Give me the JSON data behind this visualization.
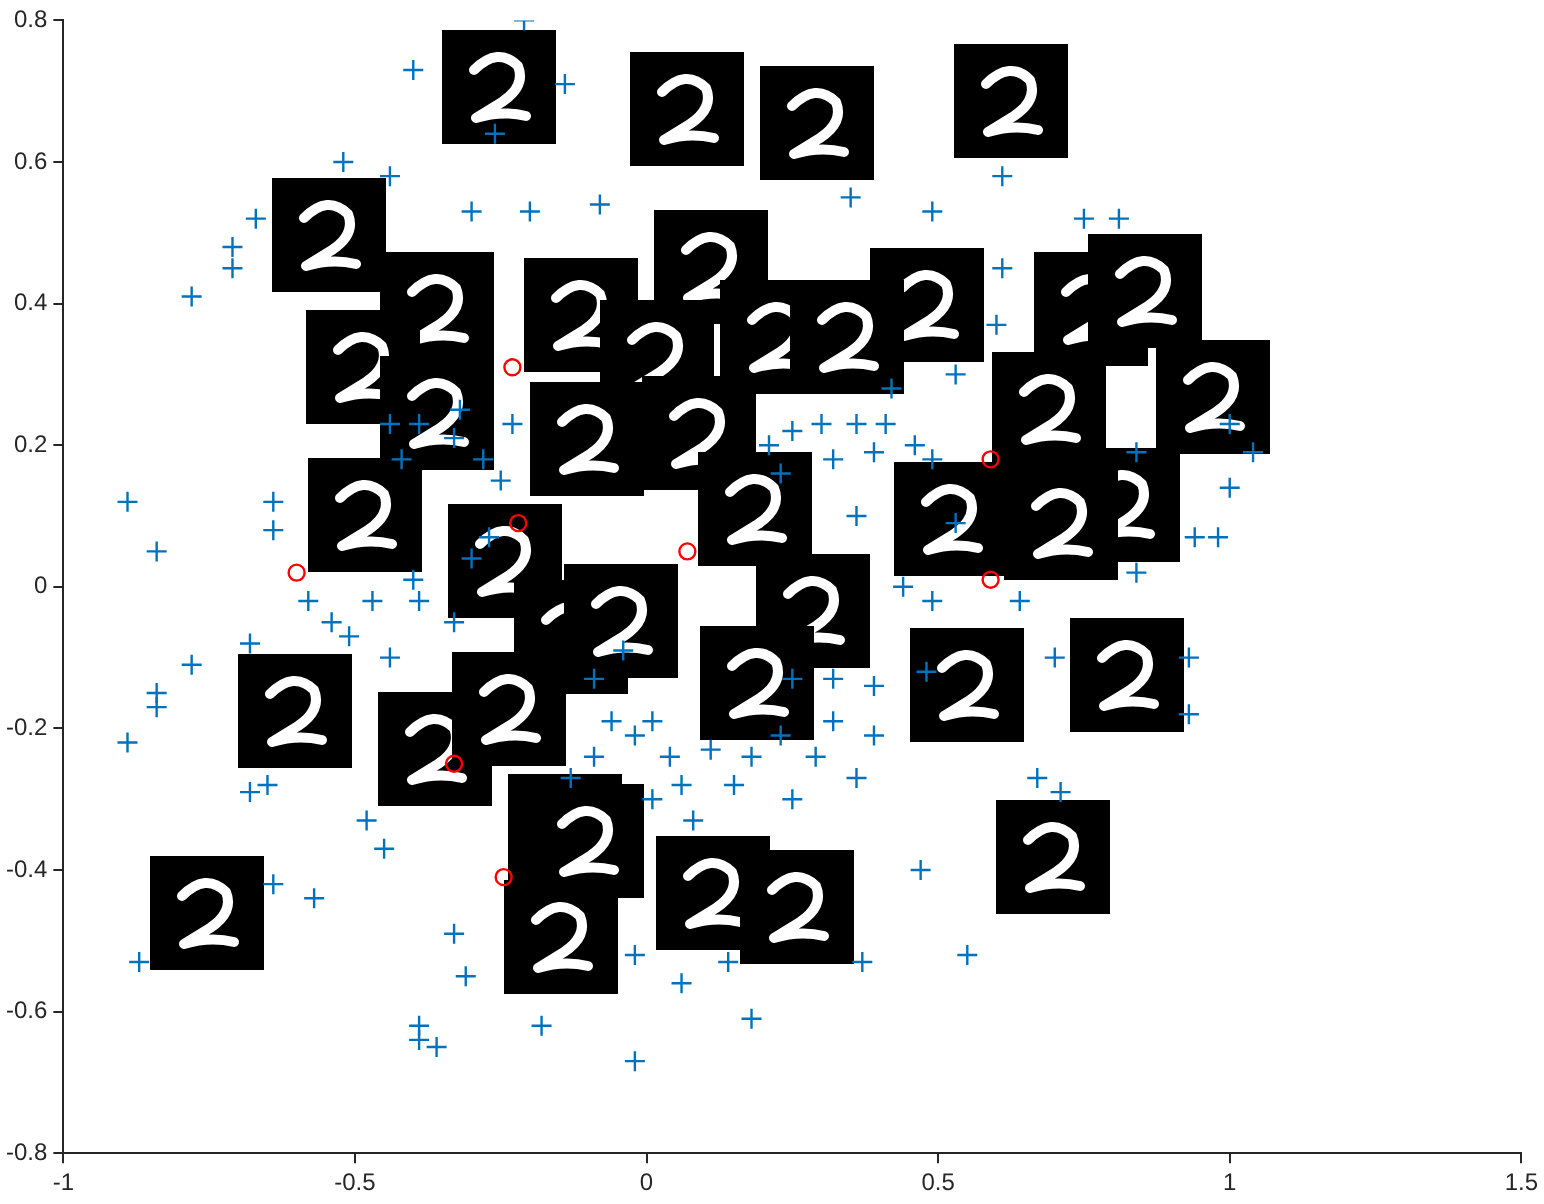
{
  "chart_data": {
    "type": "scatter",
    "xlim": [
      -1,
      1.5
    ],
    "ylim": [
      -0.8,
      0.8
    ],
    "xticks": [
      -1,
      -0.5,
      0,
      0.5,
      1,
      1.5
    ],
    "yticks": [
      -0.8,
      -0.6,
      -0.4,
      -0.2,
      0,
      0.2,
      0.4,
      0.6,
      0.8
    ],
    "grid": false,
    "legend": false,
    "series": [
      {
        "color": "#0072bd",
        "marker": "cross",
        "x": [
          -0.21,
          -0.4,
          -0.14,
          -0.26,
          -0.52,
          -0.44,
          -0.67,
          -0.71,
          -0.78,
          -0.71,
          -0.89,
          -0.84,
          -0.3,
          -0.2,
          -0.08,
          -0.89,
          -0.84,
          -0.84,
          -0.68,
          -0.78,
          -0.68,
          -0.65,
          -0.64,
          -0.57,
          -0.87,
          -0.31,
          -0.39,
          -0.39,
          -0.36,
          -0.18,
          -0.02,
          0.06,
          -0.02,
          -0.33,
          -0.45,
          -0.48,
          0.18,
          0.14,
          0.47,
          0.55,
          0.37,
          0.25,
          0.48,
          0.7,
          0.93,
          0.93,
          0.67,
          0.71,
          0.64,
          0.61,
          0.49,
          0.81,
          0.75,
          0.35,
          0.61,
          0.6,
          0.53,
          0.42,
          0.84,
          1.04,
          1.0,
          0.84,
          0.94,
          0.98,
          1.0,
          0.25,
          0.3,
          0.36,
          0.41,
          0.21,
          0.23,
          0.32,
          0.39,
          0.46,
          0.49,
          0.53,
          0.36,
          0.44,
          0.49,
          -0.44,
          -0.39,
          -0.33,
          -0.42,
          -0.28,
          -0.25,
          -0.27,
          -0.3,
          -0.4,
          -0.39,
          -0.33,
          -0.09,
          -0.06,
          -0.02,
          0.04,
          0.11,
          -0.09,
          -0.13,
          0.01,
          0.06,
          0.15,
          0.18,
          0.23,
          0.29,
          0.32,
          0.39,
          0.36,
          0.25,
          0.08,
          0.01,
          -0.04,
          0.32,
          0.39,
          -0.44,
          -0.51,
          -0.54,
          -0.58,
          -0.47,
          -0.64,
          -0.64,
          -0.23,
          -0.32
        ],
        "values": [
          0.8,
          0.73,
          0.71,
          0.64,
          0.6,
          0.58,
          0.52,
          0.48,
          0.41,
          0.45,
          0.12,
          0.05,
          0.53,
          0.53,
          0.54,
          -0.22,
          -0.15,
          -0.17,
          -0.08,
          -0.11,
          -0.29,
          -0.28,
          -0.42,
          -0.44,
          -0.53,
          -0.55,
          -0.62,
          -0.64,
          -0.65,
          -0.62,
          -0.67,
          -0.56,
          -0.52,
          -0.49,
          -0.37,
          -0.33,
          -0.61,
          -0.53,
          -0.4,
          -0.52,
          -0.53,
          -0.13,
          -0.12,
          -0.1,
          -0.1,
          -0.18,
          -0.27,
          -0.29,
          -0.02,
          0.58,
          0.53,
          0.52,
          0.52,
          0.55,
          0.45,
          0.37,
          0.3,
          0.28,
          0.19,
          0.19,
          0.14,
          0.02,
          0.07,
          0.07,
          0.23,
          0.22,
          0.23,
          0.23,
          0.23,
          0.2,
          0.16,
          0.18,
          0.19,
          0.2,
          0.18,
          0.09,
          0.1,
          0.0,
          -0.02,
          0.23,
          0.23,
          0.21,
          0.18,
          0.18,
          0.15,
          0.07,
          0.04,
          0.01,
          -0.02,
          -0.05,
          -0.13,
          -0.19,
          -0.21,
          -0.24,
          -0.23,
          -0.24,
          -0.27,
          -0.3,
          -0.28,
          -0.28,
          -0.24,
          -0.21,
          -0.24,
          -0.19,
          -0.21,
          -0.27,
          -0.3,
          -0.33,
          -0.19,
          -0.09,
          -0.13,
          -0.14,
          -0.1,
          -0.07,
          -0.05,
          -0.02,
          -0.02,
          0.08,
          0.12,
          0.23,
          0.25
        ]
      },
      {
        "color": "#ff0000",
        "marker": "circle",
        "x": [
          -0.6,
          -0.22,
          -0.23,
          0.07,
          0.59,
          0.59,
          -0.33,
          -0.245
        ],
        "values": [
          0.02,
          0.09,
          0.31,
          0.05,
          0.18,
          0.01,
          -0.25,
          -0.41
        ]
      }
    ]
  }
}
